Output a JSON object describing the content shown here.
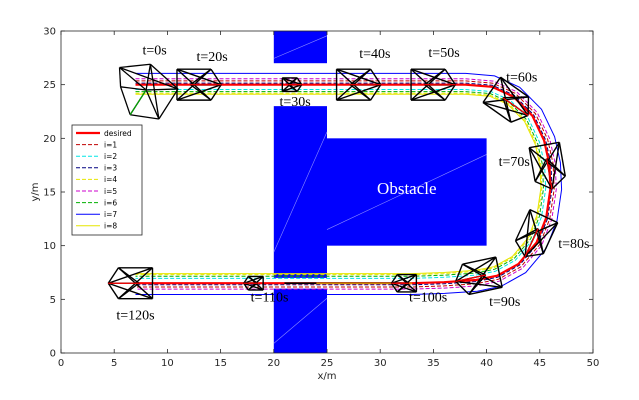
{
  "chart_data": {
    "type": "line",
    "xlabel": "x/m",
    "ylabel": "y/m",
    "xlim": [
      0,
      50
    ],
    "ylim": [
      0,
      30
    ],
    "x_ticks": [
      "0",
      "5",
      "10",
      "15",
      "20",
      "25",
      "30",
      "35",
      "40",
      "45",
      "50"
    ],
    "y_ticks": [
      "0",
      "5",
      "10",
      "15",
      "20",
      "25",
      "30"
    ],
    "grid": false,
    "legend_position": "left",
    "obstacle_label": "Obstacle",
    "obstacles": [
      {
        "x0": 20,
        "x1": 25,
        "y0": 27,
        "y1": 30
      },
      {
        "x0": 20,
        "x1": 25,
        "y0": 7,
        "y1": 23
      },
      {
        "x0": 25,
        "x1": 40,
        "y0": 10,
        "y1": 20
      },
      {
        "x0": 20,
        "x1": 25,
        "y0": 0,
        "y1": 6
      }
    ],
    "series": [
      {
        "name": "desired",
        "color": "#ff0000",
        "dash": "solid",
        "width": 2.2
      },
      {
        "name": "i=1",
        "color": "#c00000",
        "dash": "dashed",
        "width": 1,
        "offset": 0.35
      },
      {
        "name": "i=2",
        "color": "#00e5e5",
        "dash": "dashed",
        "width": 1,
        "offset": -0.45
      },
      {
        "name": "i=3",
        "color": "#000080",
        "dash": "dashed",
        "width": 1,
        "offset": 0.15
      },
      {
        "name": "i=4",
        "color": "#e6e600",
        "dash": "dashed",
        "width": 1,
        "offset": -0.8
      },
      {
        "name": "i=5",
        "color": "#cc00cc",
        "dash": "dashed",
        "width": 1,
        "offset": 0.55
      },
      {
        "name": "i=6",
        "color": "#00b000",
        "dash": "dashed",
        "width": 1,
        "offset": -0.65
      },
      {
        "name": "i=7",
        "color": "#0000ff",
        "dash": "solid",
        "width": 1,
        "offset": 1.05
      },
      {
        "name": "i=8",
        "color": "#e6e600",
        "dash": "solid",
        "width": 1,
        "offset": -0.9
      }
    ],
    "desired_path": [
      [
        7,
        25
      ],
      [
        10,
        25
      ],
      [
        13,
        25
      ],
      [
        17,
        25
      ],
      [
        20,
        25
      ],
      [
        21.5,
        25
      ],
      [
        25,
        25
      ],
      [
        28,
        25
      ],
      [
        32,
        25
      ],
      [
        35,
        25
      ],
      [
        38,
        25
      ],
      [
        40.5,
        24.8
      ],
      [
        42.5,
        23.9
      ],
      [
        44.3,
        22.1
      ],
      [
        45.4,
        19.8
      ],
      [
        45.9,
        17.6
      ],
      [
        46,
        15.3
      ],
      [
        45.6,
        12.6
      ],
      [
        44.7,
        10.3
      ],
      [
        43,
        8.3
      ],
      [
        41,
        7.2
      ],
      [
        39,
        6.8
      ],
      [
        36,
        6.6
      ],
      [
        33,
        6.5
      ],
      [
        28,
        6.5
      ],
      [
        22,
        6.5
      ],
      [
        18,
        6.5
      ],
      [
        14,
        6.5
      ],
      [
        10,
        6.5
      ],
      [
        7,
        6.5
      ]
    ],
    "time_labels": [
      {
        "text": "t=0s",
        "x": 8.8,
        "y": 27.8
      },
      {
        "text": "t=20s",
        "x": 14.2,
        "y": 27.2
      },
      {
        "text": "t=30s",
        "x": 22.0,
        "y": 23.0
      },
      {
        "text": "t=40s",
        "x": 29.5,
        "y": 27.5
      },
      {
        "text": "t=50s",
        "x": 36.0,
        "y": 27.6
      },
      {
        "text": "t=60s",
        "x": 43.3,
        "y": 25.3
      },
      {
        "text": "t=70s",
        "x": 42.6,
        "y": 17.4
      },
      {
        "text": "t=80s",
        "x": 48.2,
        "y": 9.8
      },
      {
        "text": "t=90s",
        "x": 41.7,
        "y": 4.4
      },
      {
        "text": "t=100s",
        "x": 34.5,
        "y": 4.8
      },
      {
        "text": "t=110s",
        "x": 19.6,
        "y": 4.8
      },
      {
        "text": "t=120s",
        "x": 7.0,
        "y": 3.1
      }
    ],
    "formations": [
      {
        "x": 12.5,
        "y": 25.0,
        "r": 1.6,
        "ang": 0
      },
      {
        "x": 21.5,
        "y": 25.0,
        "r": 0.7,
        "ang": 0
      },
      {
        "x": 27.5,
        "y": 25.0,
        "r": 1.6,
        "ang": 0
      },
      {
        "x": 34.5,
        "y": 25.0,
        "r": 1.6,
        "ang": 0
      },
      {
        "x": 41.8,
        "y": 23.6,
        "r": 1.6,
        "ang": -35
      },
      {
        "x": 45.7,
        "y": 17.8,
        "r": 1.6,
        "ang": -80
      },
      {
        "x": 44.7,
        "y": 11.3,
        "r": 1.6,
        "ang": -115
      },
      {
        "x": 39.6,
        "y": 7.2,
        "r": 1.6,
        "ang": -168
      },
      {
        "x": 32.5,
        "y": 6.5,
        "r": 0.9,
        "ang": 180
      },
      {
        "x": 18.3,
        "y": 6.5,
        "r": 0.7,
        "ang": 180
      },
      {
        "x": 7.0,
        "y": 6.5,
        "r": 1.6,
        "ang": 180
      }
    ]
  }
}
